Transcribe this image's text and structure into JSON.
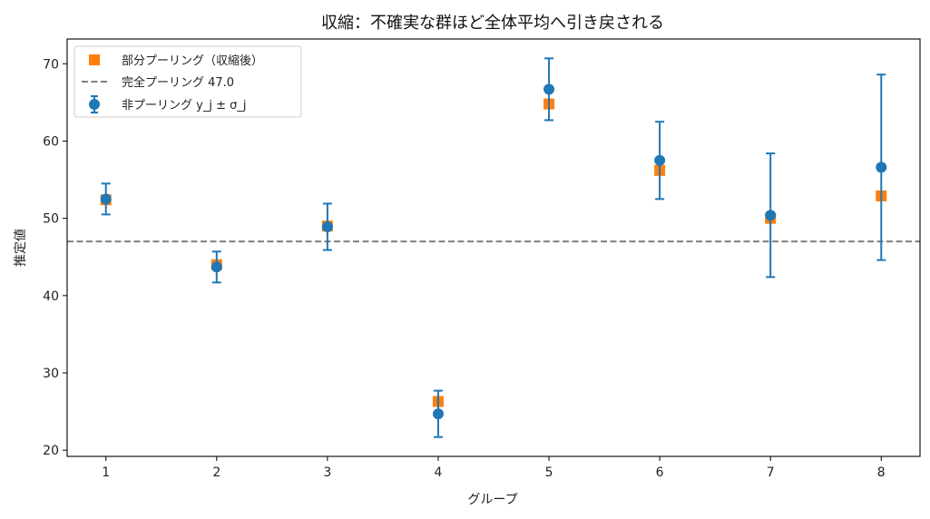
{
  "chart_data": {
    "type": "scatter",
    "title": "収縮：不確実な群ほど全体平均へ引き戻される",
    "xlabel": "グループ",
    "ylabel": "推定値",
    "xlim": [
      0.65,
      8.35
    ],
    "ylim": [
      19.2,
      73.2
    ],
    "xticks": [
      1,
      2,
      3,
      4,
      5,
      6,
      7,
      8
    ],
    "yticks": [
      20,
      30,
      40,
      50,
      60,
      70
    ],
    "grid": false,
    "legend_position": "top-left",
    "pooled_mean": 47.0,
    "series": [
      {
        "name": "部分プーリング（収縮後）",
        "kind": "marker-square",
        "color": "#ff7f0e",
        "x": [
          1,
          2,
          3,
          4,
          5,
          6,
          7,
          8
        ],
        "y": [
          52.4,
          44.0,
          49.0,
          26.3,
          64.8,
          56.2,
          50.0,
          52.9
        ]
      },
      {
        "name": "完全プーリング 47.0",
        "kind": "hline",
        "color": "#808080",
        "y": 47.0
      },
      {
        "name": "非プーリング y_j ± σ_j",
        "kind": "errorbar",
        "color": "#1f77b4",
        "x": [
          1,
          2,
          3,
          4,
          5,
          6,
          7,
          8
        ],
        "y": [
          52.5,
          43.7,
          48.9,
          24.7,
          66.7,
          57.5,
          50.4,
          56.6
        ],
        "err": [
          2.0,
          2.0,
          3.0,
          3.0,
          4.0,
          5.0,
          8.0,
          12.0
        ]
      }
    ]
  }
}
